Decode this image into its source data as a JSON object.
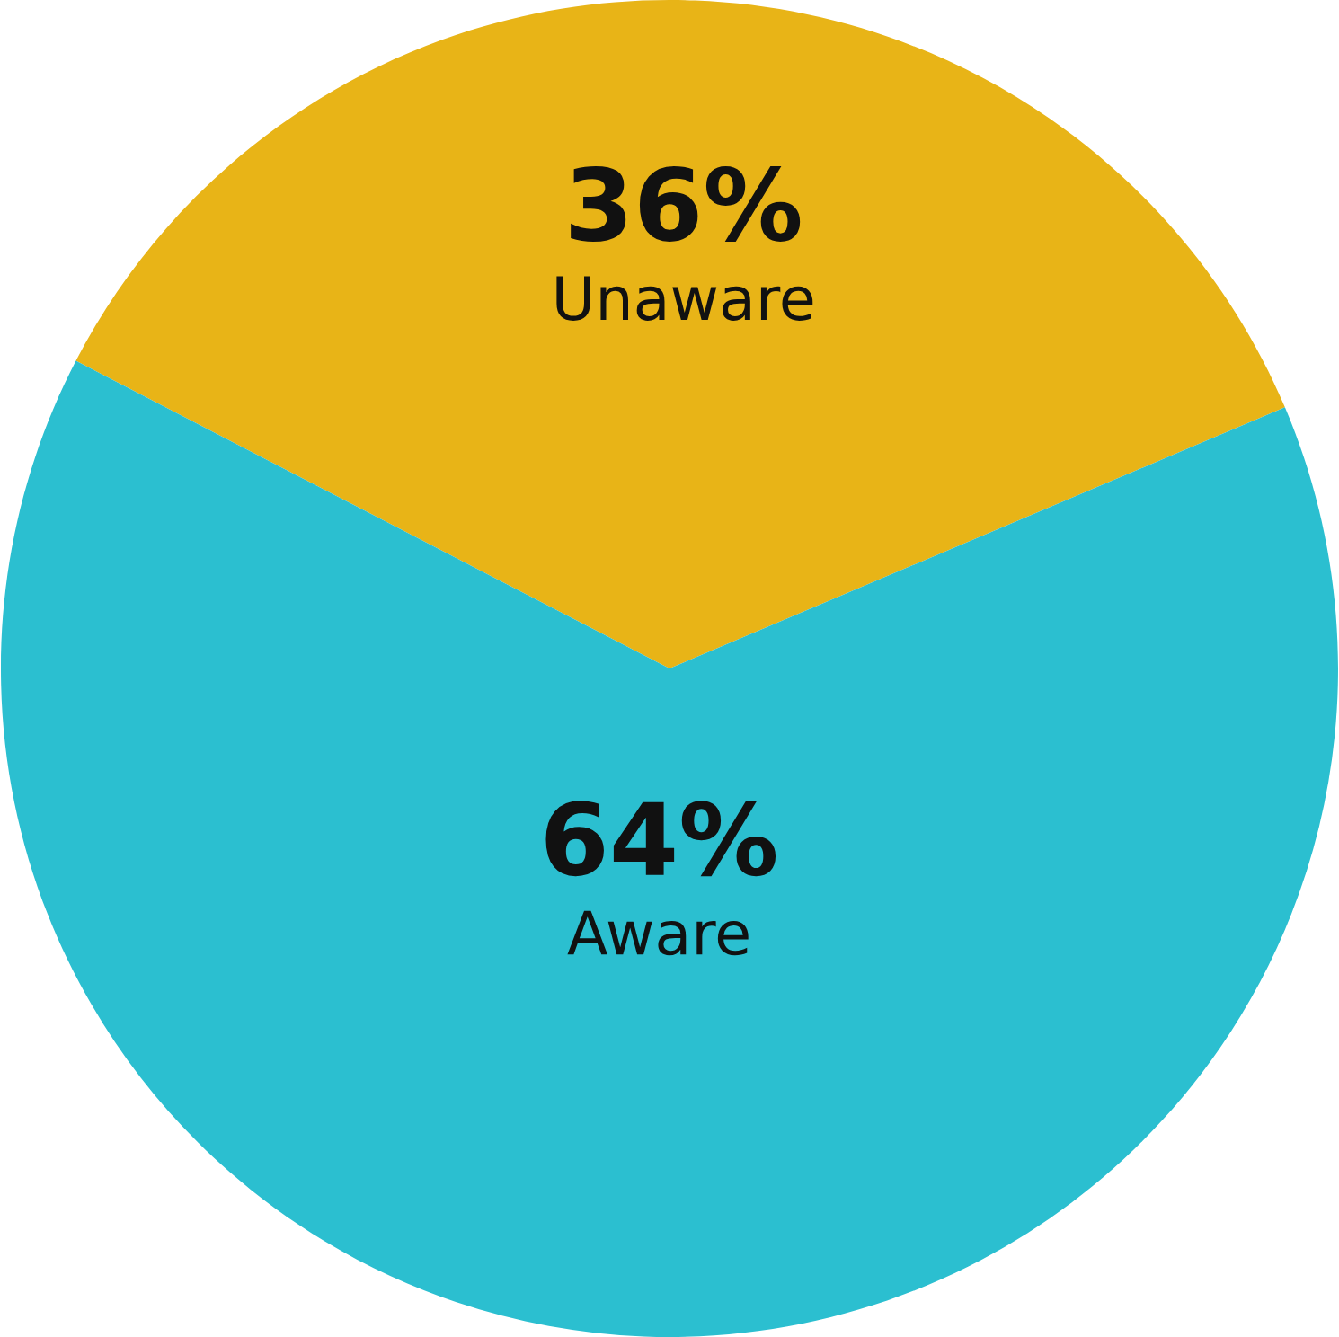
{
  "chart_data": {
    "type": "pie",
    "categories": [
      "Unaware",
      "Aware"
    ],
    "values": [
      36,
      64
    ],
    "colors": [
      "#e8b417",
      "#2bbfd0"
    ],
    "value_labels": [
      "36%",
      "64%"
    ]
  }
}
